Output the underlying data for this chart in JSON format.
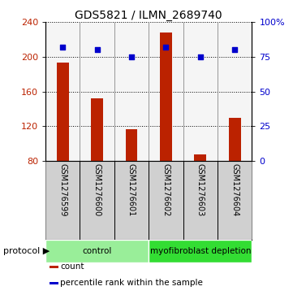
{
  "title": "GDS5821 / ILMN_2689740",
  "samples": [
    "GSM1276599",
    "GSM1276600",
    "GSM1276601",
    "GSM1276602",
    "GSM1276603",
    "GSM1276604"
  ],
  "counts": [
    193,
    152,
    116,
    228,
    87,
    130
  ],
  "percentile_ranks": [
    82,
    80,
    75,
    82,
    75,
    80
  ],
  "ylim_left": [
    80,
    240
  ],
  "yticks_left": [
    80,
    120,
    160,
    200,
    240
  ],
  "ylim_right": [
    0,
    100
  ],
  "yticks_right": [
    0,
    25,
    50,
    75,
    100
  ],
  "bar_color": "#bb2200",
  "dot_color": "#0000cc",
  "bg_color": "#ffffff",
  "label_bg_color": "#cccccc",
  "bar_bottom": 80,
  "bar_width": 0.35,
  "protocol_groups": [
    {
      "label": "control",
      "indices": [
        0,
        1,
        2
      ],
      "color": "#99ee99"
    },
    {
      "label": "myofibroblast depletion",
      "indices": [
        3,
        4,
        5
      ],
      "color": "#33dd33"
    }
  ],
  "legend_items": [
    {
      "label": "count",
      "color": "#bb2200"
    },
    {
      "label": "percentile rank within the sample",
      "color": "#0000cc"
    }
  ],
  "cell_border_color": "#888888",
  "title_fontsize": 10,
  "tick_fontsize": 8,
  "label_fontsize": 7,
  "proto_fontsize": 7.5
}
